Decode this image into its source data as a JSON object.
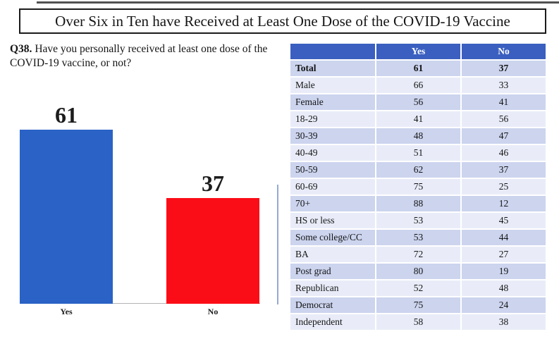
{
  "title": "Over Six in Ten have Received at Least One Dose of the COVID-19 Vaccine",
  "question": {
    "prefix": "Q38.",
    "text": " Have you personally received at least one dose of the COVID-19 vaccine, or not?"
  },
  "chart_data": {
    "type": "bar",
    "categories": [
      "Yes",
      "No"
    ],
    "values": [
      61,
      37
    ],
    "data_labels": [
      "61",
      "37"
    ],
    "bar_colors": [
      "#2a62c6",
      "#fb0d17"
    ],
    "title": "",
    "xlabel": "",
    "ylabel": "",
    "ylim": [
      0,
      100
    ],
    "grid": false,
    "legend": "none"
  },
  "table": {
    "columns": [
      "",
      "Yes",
      "No"
    ],
    "rows": [
      {
        "label": "Total",
        "yes": "61",
        "no": "37",
        "bold": true
      },
      {
        "label": "Male",
        "yes": "66",
        "no": "33",
        "bold": false
      },
      {
        "label": "Female",
        "yes": "56",
        "no": "41",
        "bold": false
      },
      {
        "label": "18-29",
        "yes": "41",
        "no": "56",
        "bold": false
      },
      {
        "label": "30-39",
        "yes": "48",
        "no": "47",
        "bold": false
      },
      {
        "label": "40-49",
        "yes": "51",
        "no": "46",
        "bold": false
      },
      {
        "label": "50-59",
        "yes": "62",
        "no": "37",
        "bold": false
      },
      {
        "label": "60-69",
        "yes": "75",
        "no": "25",
        "bold": false
      },
      {
        "label": "70+",
        "yes": "88",
        "no": "12",
        "bold": false
      },
      {
        "label": "HS or less",
        "yes": "53",
        "no": "45",
        "bold": false
      },
      {
        "label": "Some college/CC",
        "yes": "53",
        "no": "44",
        "bold": false
      },
      {
        "label": "BA",
        "yes": "72",
        "no": "27",
        "bold": false
      },
      {
        "label": "Post grad",
        "yes": "80",
        "no": "19",
        "bold": false
      },
      {
        "label": "Republican",
        "yes": "52",
        "no": "48",
        "bold": false
      },
      {
        "label": "Democrat",
        "yes": "75",
        "no": "24",
        "bold": false
      },
      {
        "label": "Independent",
        "yes": "58",
        "no": "38",
        "bold": false
      }
    ]
  },
  "colors": {
    "header_bg": "#3a5fc0",
    "header_text": "#ffffff",
    "row_dark": "#ccd4ee",
    "row_light": "#e9ecf8",
    "bar_yes": "#2a62c6",
    "bar_no": "#fb0d17"
  }
}
